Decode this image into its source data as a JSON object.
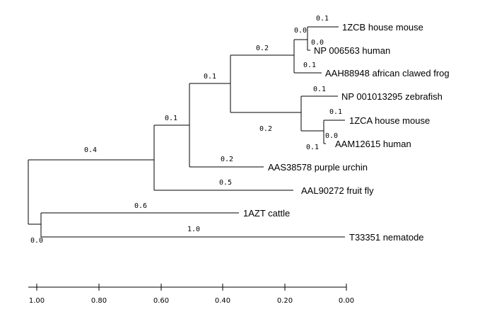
{
  "tree": {
    "taxa": [
      {
        "id": "t1",
        "label": "1ZCB house mouse"
      },
      {
        "id": "t2",
        "label": "NP 006563 human"
      },
      {
        "id": "t3",
        "label": "AAH88948 african clawed frog"
      },
      {
        "id": "t4",
        "label": "NP 001013295 zebrafish"
      },
      {
        "id": "t5",
        "label": "1ZCA house mouse"
      },
      {
        "id": "t6",
        "label": "AAM12615 human"
      },
      {
        "id": "t7",
        "label": "AAS38578 purple urchin"
      },
      {
        "id": "t8",
        "label": "AAL90272 fruit fly"
      },
      {
        "id": "t9",
        "label": "1AZT cattle"
      },
      {
        "id": "t10",
        "label": "T33351 nematode"
      }
    ],
    "branch_lengths": {
      "b_t1": "0.1",
      "b_mouse_human_node": "0.0",
      "b_t2": "0.0",
      "b_t3": "0.1",
      "b_tetrapod_node": "0.2",
      "b_t4": "0.1",
      "b_t5": "0.1",
      "b_t6": "0.0",
      "b_zca_node": "0.1",
      "b_fish_node": "0.2",
      "b_vertebrate_node": "0.1",
      "b_t7": "0.2",
      "b_deuterostome_node": "0.1",
      "b_t8": "0.5",
      "b_ingroup_node": "0.4",
      "b_t9": "0.6",
      "b_t10": "1.0",
      "b_root": "0.0"
    }
  },
  "scale_axis": {
    "ticks": [
      "1.00",
      "0.80",
      "0.60",
      "0.40",
      "0.20",
      "0.00"
    ]
  }
}
